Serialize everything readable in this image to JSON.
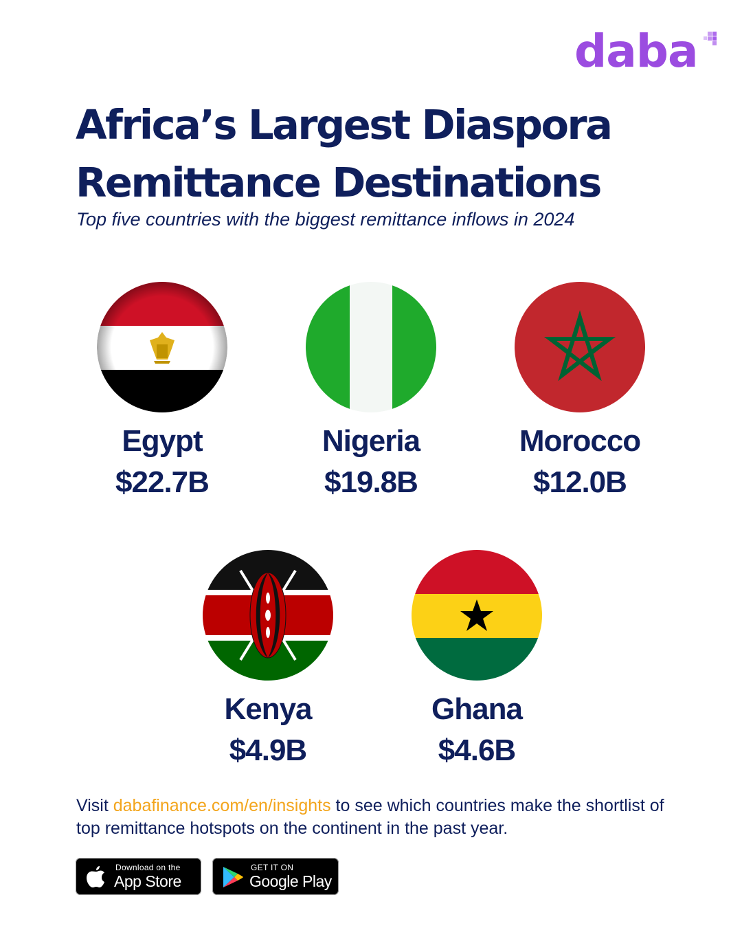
{
  "brand": {
    "logo_text": "daba"
  },
  "header": {
    "title": "Africa’s Largest Diaspora Remittance Destinations",
    "subtitle": "Top five countries with the biggest remittance inflows in 2024"
  },
  "countries": [
    {
      "name": "Egypt",
      "value": "$22.7B",
      "flag_icon": "egypt-flag-icon"
    },
    {
      "name": "Nigeria",
      "value": "$19.8B",
      "flag_icon": "nigeria-flag-icon"
    },
    {
      "name": "Morocco",
      "value": "$12.0B",
      "flag_icon": "morocco-flag-icon"
    },
    {
      "name": "Kenya",
      "value": "$4.9B",
      "flag_icon": "kenya-flag-icon"
    },
    {
      "name": "Ghana",
      "value": "$4.6B",
      "flag_icon": "ghana-flag-icon"
    }
  ],
  "footer": {
    "prefix": "Visit ",
    "link_text": "dabafinance.com/en/insights",
    "suffix": " to see which countries make the shortlist of top remittance hotspots on the continent in the past year."
  },
  "badges": {
    "app_store": {
      "small": "Download on the",
      "big": "App Store",
      "icon": "apple-icon"
    },
    "google_play": {
      "small": "GET IT ON",
      "big": "Google Play",
      "icon": "google-play-icon"
    }
  },
  "colors": {
    "navy": "#0f1f5c",
    "brand_purple": "#9b4ce0",
    "link_orange": "#f3a51c",
    "egypt_red": "#ce1126",
    "egypt_gold": "#c09300",
    "nigeria_green": "#1faa2c",
    "morocco_red": "#c1272d",
    "morocco_green": "#006233",
    "kenya_red": "#bb0000",
    "kenya_green": "#006600",
    "ghana_red": "#ce1126",
    "ghana_yellow": "#fcd116",
    "ghana_green": "#006b3f"
  }
}
